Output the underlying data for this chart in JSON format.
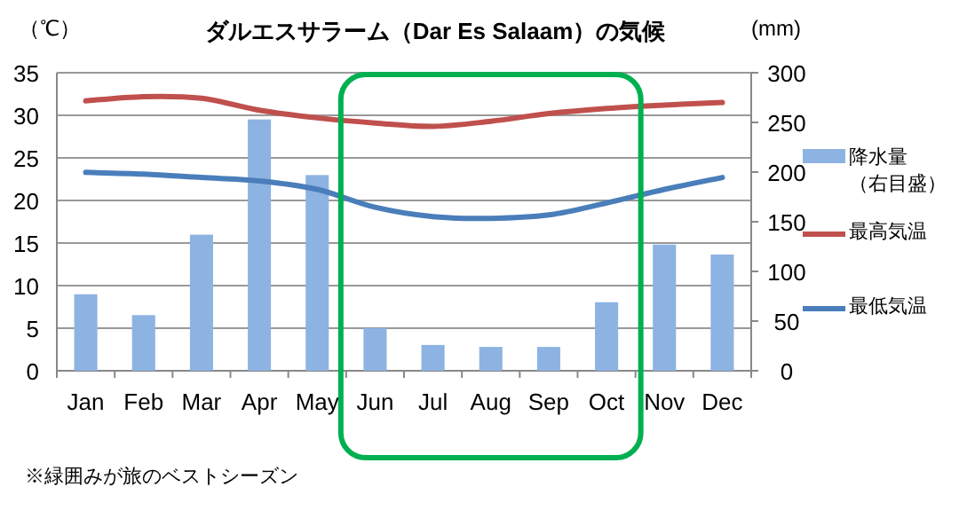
{
  "chart_data": {
    "type": "bar",
    "title": "ダルエスサラーム（Dar Es Salaam）の気候",
    "ylabel": "（℃）",
    "y2label": "(mm)",
    "categories": [
      "Jan",
      "Feb",
      "Mar",
      "Apr",
      "May",
      "Jun",
      "Jul",
      "Aug",
      "Sep",
      "Oct",
      "Nov",
      "Dec"
    ],
    "series": [
      {
        "name": "降水量（右目盛）",
        "axis": "y2",
        "color": "#8db3e2",
        "values": [
          77,
          56,
          137,
          253,
          197,
          43,
          26,
          24,
          24,
          69,
          127,
          117
        ]
      },
      {
        "name": "最高気温",
        "type": "line",
        "color": "#c0504d",
        "values": [
          31.7,
          32.2,
          32.0,
          30.6,
          29.7,
          29.1,
          28.7,
          29.3,
          30.2,
          30.8,
          31.2,
          31.5
        ]
      },
      {
        "name": "最低気温",
        "type": "line",
        "color": "#4a7ebb",
        "values": [
          23.3,
          23.1,
          22.7,
          22.3,
          21.3,
          19.2,
          18.1,
          17.9,
          18.3,
          19.7,
          21.3,
          22.7
        ]
      }
    ],
    "ylim": [
      0,
      35
    ],
    "yticks": [
      0,
      5,
      10,
      15,
      20,
      25,
      30,
      35
    ],
    "y2lim": [
      0,
      300
    ],
    "y2ticks": [
      0,
      50,
      100,
      150,
      200,
      250,
      300
    ],
    "grid": "y",
    "legend": "right",
    "marker": "none",
    "line_style": "solid",
    "annotations": [
      "※緑囲みが旅のベストシーズン"
    ]
  }
}
